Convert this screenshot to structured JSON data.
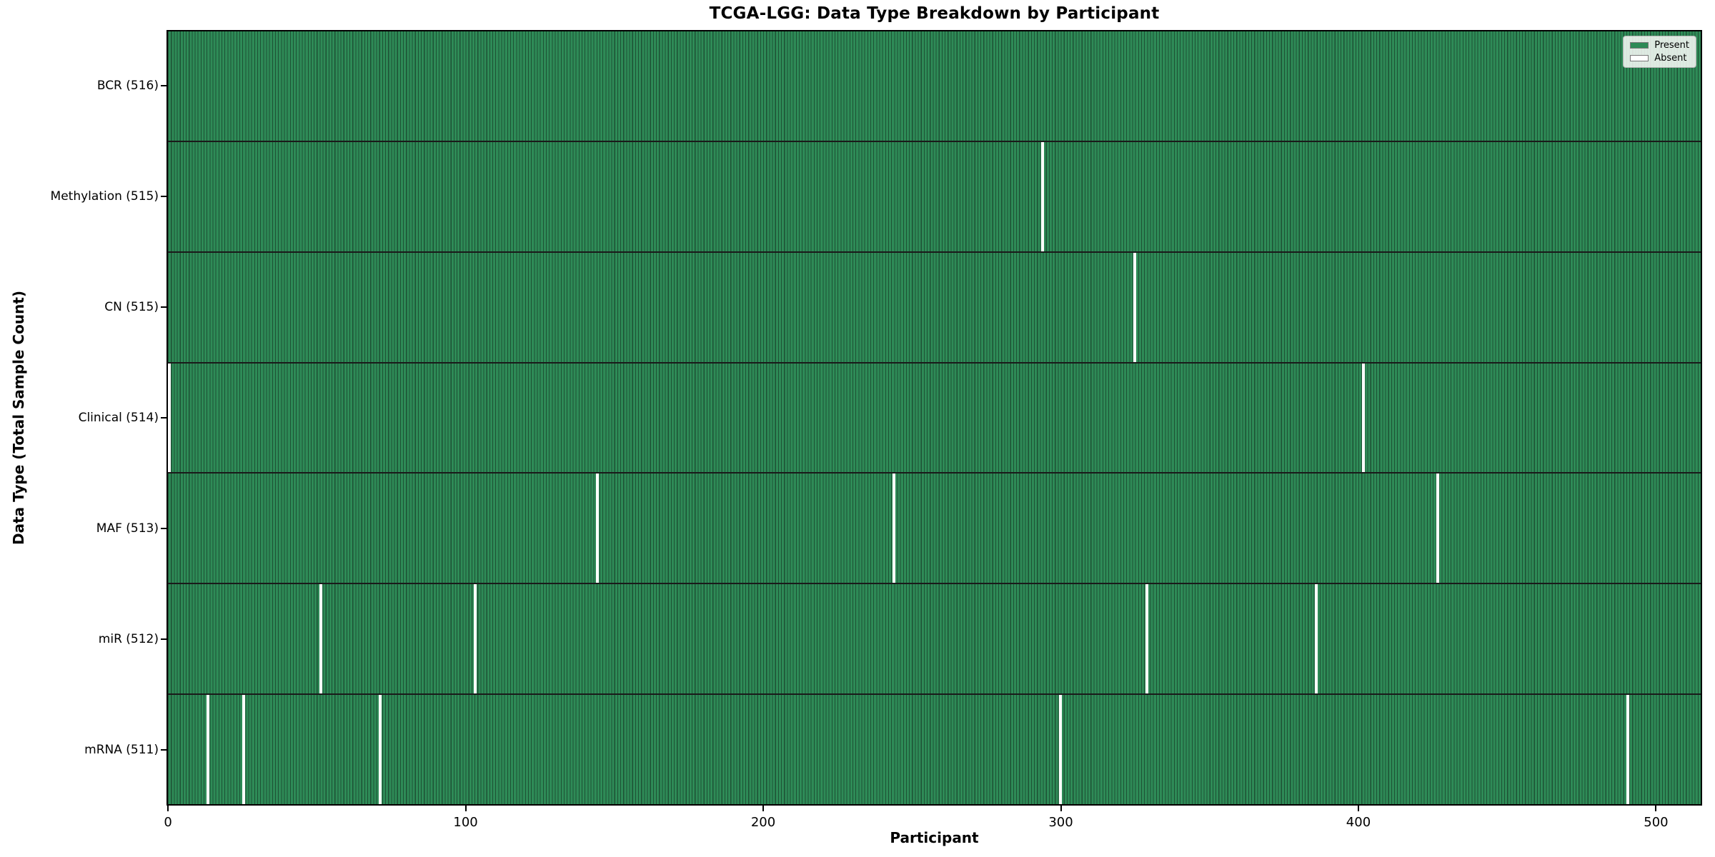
{
  "chart_data": {
    "type": "heatmap",
    "title": "TCGA-LGG: Data Type Breakdown by Participant",
    "xlabel": "Participant",
    "ylabel": "Data Type (Total Sample Count)",
    "n_participants": 516,
    "x_ticks": [
      0,
      100,
      200,
      300,
      400,
      500
    ],
    "xlim": [
      0,
      516
    ],
    "grid": false,
    "legend_position": "upper right",
    "rows": [
      {
        "data_type": "BCR",
        "label": "BCR (516)",
        "total": 516,
        "absent_participants": []
      },
      {
        "data_type": "Methylation",
        "label": "Methylation (515)",
        "total": 515,
        "absent_participants": [
          294
        ]
      },
      {
        "data_type": "CN",
        "label": "CN (515)",
        "total": 515,
        "absent_participants": [
          325
        ]
      },
      {
        "data_type": "Clinical",
        "label": "Clinical (514)",
        "total": 514,
        "absent_participants": [
          0,
          402
        ]
      },
      {
        "data_type": "MAF",
        "label": "MAF (513)",
        "total": 513,
        "absent_participants": [
          144,
          244,
          427
        ]
      },
      {
        "data_type": "miR",
        "label": "miR (512)",
        "total": 512,
        "absent_participants": [
          51,
          103,
          329,
          386
        ]
      },
      {
        "data_type": "mRNA",
        "label": "mRNA (511)",
        "total": 511,
        "absent_participants": [
          13,
          25,
          71,
          300,
          491
        ]
      }
    ],
    "legend": [
      {
        "label": "Present",
        "color": "#2e8b57"
      },
      {
        "label": "Absent",
        "color": "#ffffff"
      }
    ],
    "colors": {
      "present": "#2e8b57",
      "absent": "#ffffff",
      "bar_edge": "#1d5134",
      "row_separator": "#1a1a1a",
      "axis": "#000000"
    }
  }
}
